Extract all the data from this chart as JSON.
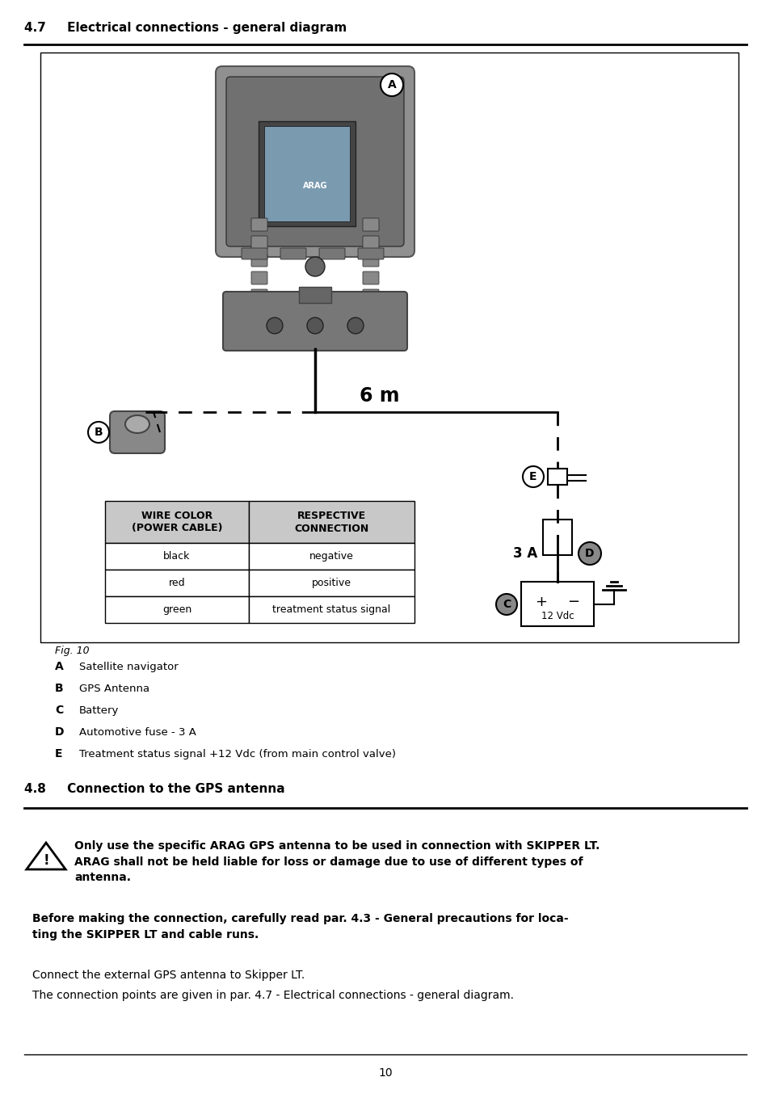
{
  "page_number": "10",
  "section_47_title": "4.7     Electrical connections - general diagram",
  "section_48_title": "4.8     Connection to the GPS antenna",
  "fig_label": "Fig. 10",
  "legend_items": [
    {
      "letter": "A",
      "desc": "Satellite navigator"
    },
    {
      "letter": "B",
      "desc": "GPS Antenna"
    },
    {
      "letter": "C",
      "desc": "Battery"
    },
    {
      "letter": "D",
      "desc": "Automotive fuse - 3 A"
    },
    {
      "letter": "E",
      "desc": "Treatment status signal +12 Vdc (from main control valve)"
    }
  ],
  "table_headers": [
    "WIRE COLOR\n(POWER CABLE)",
    "RESPECTIVE\nCONNECTION"
  ],
  "table_rows": [
    [
      "black",
      "negative"
    ],
    [
      "red",
      "positive"
    ],
    [
      "green",
      "treatment status signal"
    ]
  ],
  "distance_label": "6 m",
  "warning_bold_text": "Only use the specific ARAG GPS antenna to be used in connection with SKIPPER LT.\nARAG shall not be held liable for loss or damage due to use of different types of\nantenna.",
  "warning_text2": "Before making the connection, carefully read par. 4.3 - General precautions for loca-\nting the SKIPPER LT and cable runs.",
  "body_text1": "Connect the external GPS antenna to Skipper LT.",
  "body_text2": "The connection points are given in par. 4.7 - Electrical connections - general diagram.",
  "bg_color": "#ffffff",
  "table_header_bg": "#c8c8c8",
  "border_color": "#000000",
  "text_color": "#000000"
}
